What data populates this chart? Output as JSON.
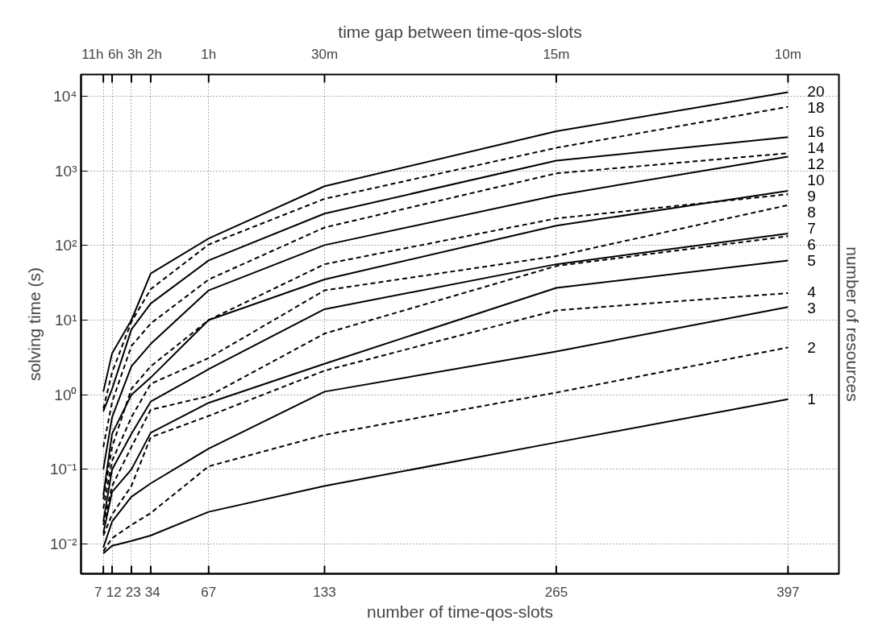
{
  "chart_data": {
    "type": "line",
    "xlabel": "number of time-qos-slots",
    "ylabel": "solving time (s)",
    "x2label": "time gap between time-qos-slots",
    "y2label": "number of resources",
    "x": [
      7,
      12,
      23,
      34,
      67,
      133,
      265,
      397
    ],
    "xlim": [
      -5.7,
      426
    ],
    "xticks": [
      7,
      12,
      23,
      34,
      67,
      133,
      265,
      397
    ],
    "annotations": [
      "11h",
      "6h",
      "3h",
      "2h",
      "1h",
      "30m",
      "15m",
      "10m"
    ],
    "log": "y",
    "ylim": [
      0.004,
      19500
    ],
    "yticks": [
      {
        "value": 0.01,
        "label": "10⁻²"
      },
      {
        "value": 0.1,
        "label": "10⁻¹"
      },
      {
        "value": 1,
        "label": "10⁰"
      },
      {
        "value": 10,
        "label": "10¹"
      },
      {
        "value": 100,
        "label": "10²"
      },
      {
        "value": 1000,
        "label": "10³"
      },
      {
        "value": 10000,
        "label": "10⁴"
      }
    ],
    "grid": true,
    "legend": "right",
    "series": [
      {
        "name": "1",
        "color": "#000000",
        "line_style": "solid",
        "values": [
          0.0075,
          0.0095,
          0.011,
          0.013,
          0.027,
          0.06,
          0.23,
          0.87
        ]
      },
      {
        "name": "2",
        "color": "#000000",
        "line_style": "dashed",
        "values": [
          0.008,
          0.012,
          0.018,
          0.026,
          0.11,
          0.29,
          1.07,
          4.3
        ]
      },
      {
        "name": "3",
        "color": "#000000",
        "line_style": "solid",
        "values": [
          0.009,
          0.02,
          0.043,
          0.065,
          0.19,
          1.1,
          3.8,
          15
        ]
      },
      {
        "name": "4",
        "color": "#000000",
        "line_style": "dashed",
        "values": [
          0.013,
          0.025,
          0.06,
          0.27,
          0.52,
          2.1,
          13.5,
          23
        ]
      },
      {
        "name": "5",
        "color": "#000000",
        "line_style": "solid",
        "values": [
          0.014,
          0.05,
          0.1,
          0.31,
          0.78,
          2.6,
          27,
          63
        ]
      },
      {
        "name": "6",
        "color": "#000000",
        "line_style": "dashed",
        "values": [
          0.018,
          0.06,
          0.2,
          0.63,
          0.96,
          6.6,
          53,
          133
        ]
      },
      {
        "name": "7",
        "color": "#000000",
        "line_style": "solid",
        "values": [
          0.02,
          0.1,
          0.3,
          0.81,
          2.2,
          14,
          56,
          144
        ]
      },
      {
        "name": "8",
        "color": "#000000",
        "line_style": "dashed",
        "values": [
          0.03,
          0.13,
          0.5,
          1.4,
          3.1,
          25,
          72,
          347
        ]
      },
      {
        "name": "9",
        "color": "#000000",
        "line_style": "dashed",
        "values": [
          0.04,
          0.2,
          1.2,
          2.4,
          10,
          56,
          230,
          485
        ]
      },
      {
        "name": "10",
        "color": "#000000",
        "line_style": "solid",
        "values": [
          0.045,
          0.3,
          1.0,
          1.7,
          10,
          35,
          184,
          540
        ]
      },
      {
        "name": "12",
        "color": "#000000",
        "line_style": "solid",
        "values": [
          0.1,
          0.5,
          2.4,
          4.8,
          25,
          101,
          468,
          1550
        ]
      },
      {
        "name": "14",
        "color": "#000000",
        "line_style": "dashed",
        "values": [
          0.2,
          0.8,
          4.5,
          9,
          35,
          174,
          923,
          1720
        ]
      },
      {
        "name": "16",
        "color": "#000000",
        "line_style": "solid",
        "values": [
          0.6,
          1.2,
          7.5,
          16.7,
          63,
          267,
          1365,
          2830
        ]
      },
      {
        "name": "18",
        "color": "#000000",
        "line_style": "dashed",
        "values": [
          0.65,
          2.0,
          9.5,
          26,
          103,
          421,
          2030,
          7200
        ]
      },
      {
        "name": "20",
        "color": "#000000",
        "line_style": "solid",
        "values": [
          1.1,
          3.6,
          10,
          42,
          124,
          621,
          3390,
          11300
        ]
      }
    ]
  }
}
